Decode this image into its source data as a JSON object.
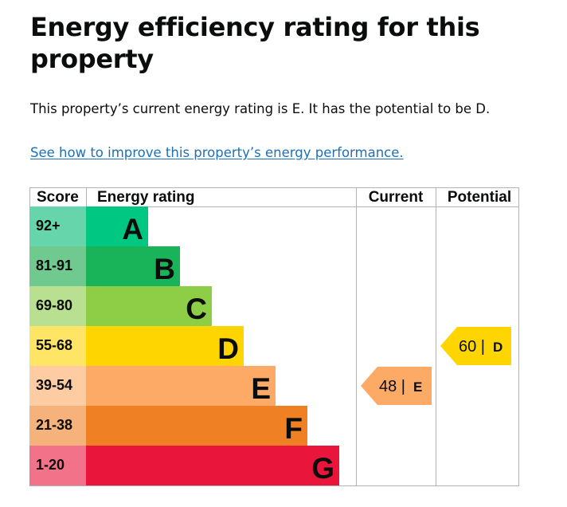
{
  "page": {
    "title": "Energy efficiency rating for this property",
    "summary": "This property’s current energy rating is E. It has the potential to be D.",
    "link_text": "See how to improve this property’s energy performance."
  },
  "chart_data": {
    "type": "bar",
    "headers": {
      "score": "Score",
      "rating": "Energy rating",
      "current": "Current",
      "potential": "Potential"
    },
    "bands": [
      {
        "band": "A",
        "range": "92+",
        "min": 92,
        "max": 100,
        "color": "#00c781",
        "score_bg": "#66d5ac"
      },
      {
        "band": "B",
        "range": "81-91",
        "min": 81,
        "max": 91,
        "color": "#19b459",
        "score_bg": "#70c98f"
      },
      {
        "band": "C",
        "range": "69-80",
        "min": 69,
        "max": 80,
        "color": "#8dce46",
        "score_bg": "#b9e090"
      },
      {
        "band": "D",
        "range": "55-68",
        "min": 55,
        "max": 68,
        "color": "#ffd500",
        "score_bg": "#ffe566"
      },
      {
        "band": "E",
        "range": "39-54",
        "min": 39,
        "max": 54,
        "color": "#fcaa65",
        "score_bg": "#fdcca3"
      },
      {
        "band": "F",
        "range": "21-38",
        "min": 21,
        "max": 38,
        "color": "#ef8023",
        "score_bg": "#f5b37b"
      },
      {
        "band": "G",
        "range": "1-20",
        "min": 1,
        "max": 20,
        "color": "#e9153b",
        "score_bg": "#f27389"
      }
    ],
    "current": {
      "score": "48",
      "band": "E"
    },
    "potential": {
      "score": "60",
      "band": "D"
    }
  }
}
